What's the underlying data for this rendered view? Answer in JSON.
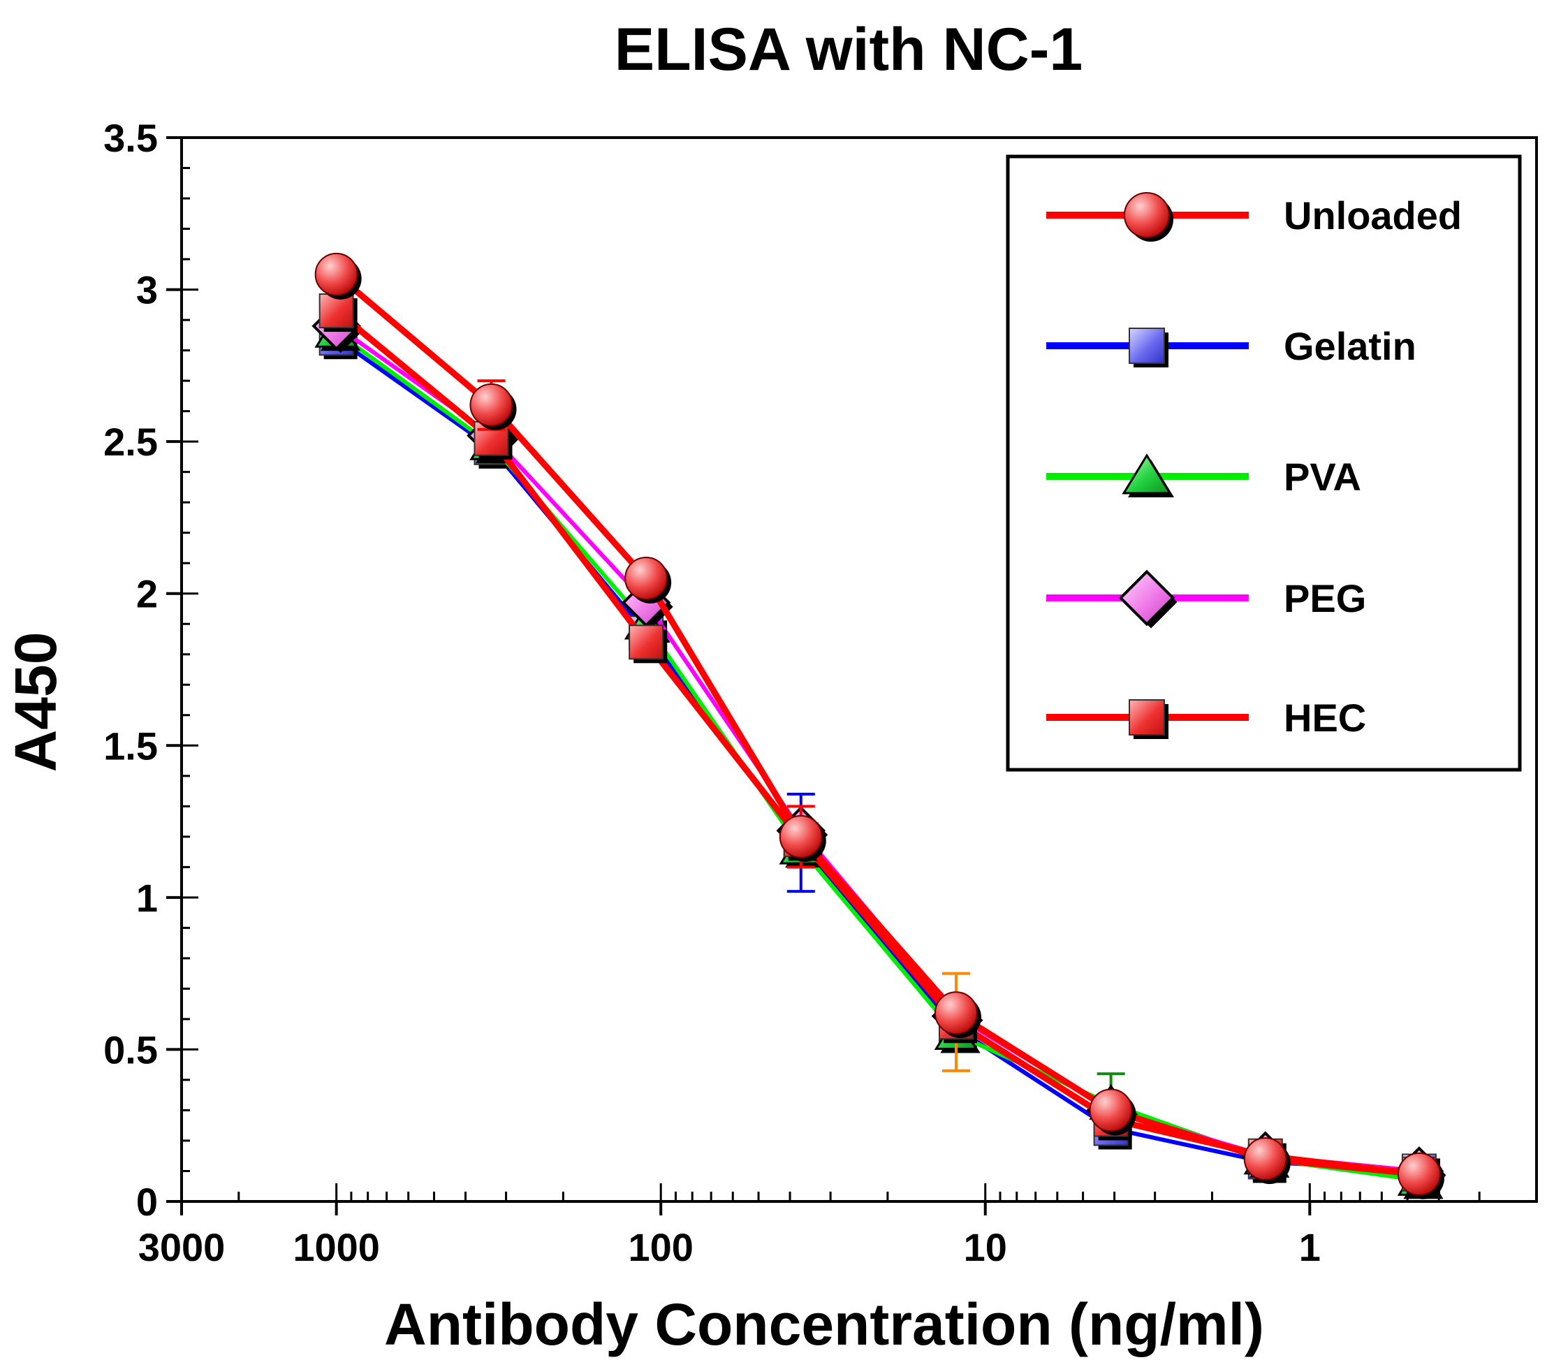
{
  "chart_data": {
    "type": "line",
    "title": "ELISA with NC-1",
    "xlabel": "Antibody Concentration (ng/ml)",
    "ylabel": "A450",
    "xscale": "log",
    "xreversed": true,
    "xlim": [
      3000,
      0.2
    ],
    "ylim": [
      0,
      3.5
    ],
    "xticks": [
      {
        "value": 3000,
        "label": "3000"
      },
      {
        "value": 1000,
        "label": "1000"
      },
      {
        "value": 100,
        "label": "100"
      },
      {
        "value": 10,
        "label": "10"
      },
      {
        "value": 1,
        "label": "1"
      }
    ],
    "yticks": [
      {
        "value": 0,
        "label": "0"
      },
      {
        "value": 0.5,
        "label": "0.5"
      },
      {
        "value": 1,
        "label": "1"
      },
      {
        "value": 1.5,
        "label": "1.5"
      },
      {
        "value": 2,
        "label": "2"
      },
      {
        "value": 2.5,
        "label": "2.5"
      },
      {
        "value": 3,
        "label": "3"
      },
      {
        "value": 3.5,
        "label": "3.5"
      }
    ],
    "x": [
      1000,
      333,
      111,
      37,
      12.3,
      4.1,
      1.37,
      0.46
    ],
    "legend_position": "top-right",
    "series": [
      {
        "name": "Gelatin",
        "color": "#0000ff",
        "marker": "square",
        "markerColor": "#6f6ff0",
        "values": [
          2.84,
          2.48,
          1.87,
          1.18,
          0.57,
          0.24,
          0.13,
          0.1
        ],
        "errors": [
          null,
          null,
          null,
          0.16,
          null,
          null,
          null,
          null
        ]
      },
      {
        "name": "PVA",
        "color": "#00ee00",
        "marker": "triangle",
        "markerColor": "#22cc33",
        "values": [
          2.86,
          2.49,
          1.9,
          1.16,
          0.55,
          0.32,
          0.14,
          0.07
        ],
        "errors": [
          null,
          null,
          null,
          null,
          null,
          0.1,
          null,
          null
        ]
      },
      {
        "name": "PEG",
        "color": "#ff00ff",
        "marker": "diamond",
        "markerColor": "#f07ae8",
        "values": [
          2.88,
          2.52,
          1.97,
          1.22,
          0.61,
          0.3,
          0.15,
          0.1
        ],
        "errors": [
          null,
          null,
          null,
          null,
          null,
          null,
          null,
          null
        ]
      },
      {
        "name": "HEC",
        "color": "#ff0000",
        "marker": "square",
        "markerColor": "#ee3333",
        "values": [
          2.93,
          2.51,
          1.84,
          1.19,
          0.59,
          0.27,
          0.15,
          0.09
        ],
        "errors": [
          null,
          null,
          null,
          null,
          0.16,
          null,
          null,
          null
        ]
      },
      {
        "name": "Unloaded",
        "color": "#ff0000",
        "marker": "circle",
        "markerColor": "#ee4444",
        "values": [
          3.05,
          2.62,
          2.05,
          1.2,
          0.62,
          0.3,
          0.14,
          0.09
        ],
        "errors": [
          null,
          0.08,
          null,
          0.1,
          null,
          null,
          null,
          null
        ]
      }
    ],
    "legend_order": [
      "Unloaded",
      "Gelatin",
      "PVA",
      "PEG",
      "HEC"
    ]
  }
}
